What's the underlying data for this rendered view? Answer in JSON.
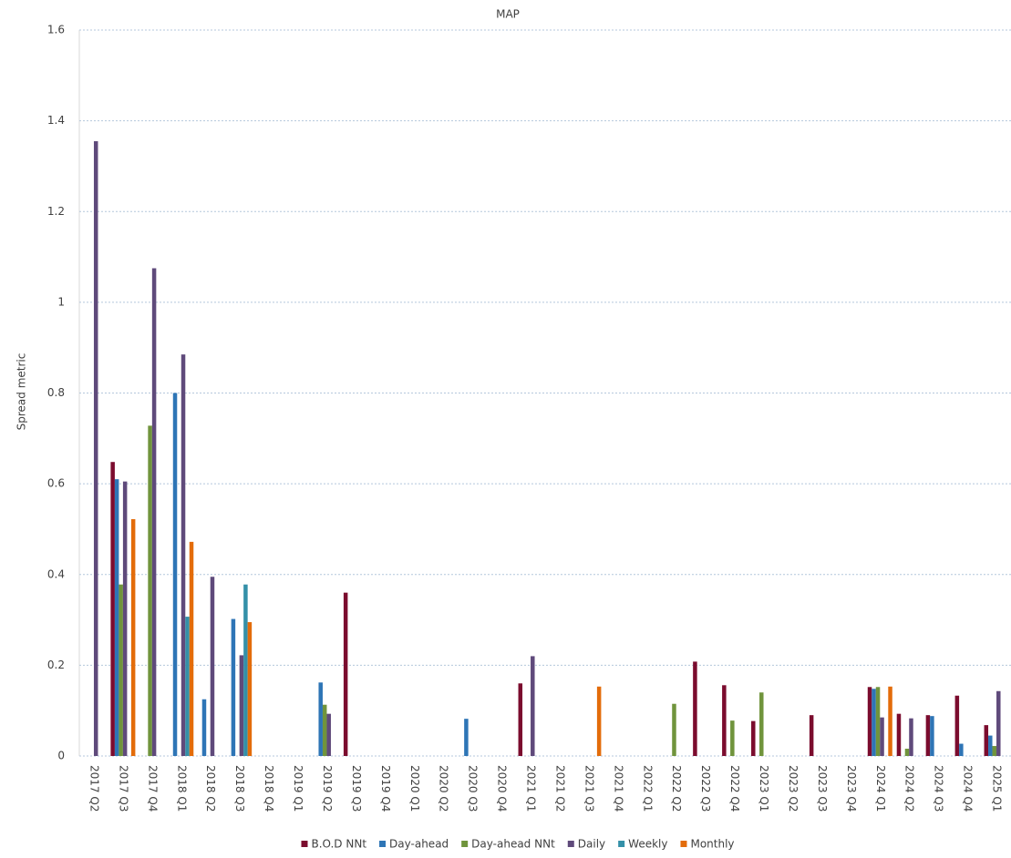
{
  "chart_data": {
    "type": "bar",
    "title": "MAP",
    "y_label": "Spread metric",
    "categories": [
      "2017 Q2",
      "2017 Q3",
      "2017 Q4",
      "2018 Q1",
      "2018 Q2",
      "2018 Q3",
      "2018 Q4",
      "2019 Q1",
      "2019 Q2",
      "2019 Q3",
      "2019 Q4",
      "2020 Q1",
      "2020 Q2",
      "2020 Q3",
      "2020 Q4",
      "2021 Q1",
      "2021 Q2",
      "2021 Q3",
      "2021 Q4",
      "2022 Q1",
      "2022 Q2",
      "2022 Q3",
      "2022 Q4",
      "2023 Q1",
      "2023 Q2",
      "2023 Q3",
      "2023 Q4",
      "2024 Q1",
      "2024 Q2",
      "2024 Q3",
      "2024 Q4",
      "2025 Q1"
    ],
    "series": [
      {
        "name": "B.O.D NNt",
        "color": "#7b0c2e",
        "values": [
          null,
          0.648,
          null,
          null,
          null,
          null,
          null,
          null,
          null,
          0.36,
          null,
          null,
          null,
          null,
          null,
          0.16,
          null,
          null,
          null,
          null,
          null,
          0.208,
          0.156,
          0.077,
          null,
          0.09,
          null,
          0.152,
          0.093,
          0.09,
          0.133,
          0.068
        ]
      },
      {
        "name": "Day-ahead",
        "color": "#2e75b6",
        "values": [
          null,
          0.61,
          null,
          0.8,
          0.125,
          0.302,
          null,
          null,
          0.162,
          null,
          null,
          null,
          null,
          0.082,
          null,
          null,
          null,
          null,
          null,
          null,
          null,
          null,
          null,
          null,
          null,
          null,
          null,
          0.148,
          null,
          0.088,
          0.027,
          0.045
        ]
      },
      {
        "name": "Day-ahead NNt",
        "color": "#70943c",
        "values": [
          null,
          0.378,
          0.728,
          null,
          null,
          null,
          null,
          null,
          0.113,
          null,
          null,
          null,
          null,
          null,
          null,
          null,
          null,
          null,
          null,
          null,
          0.115,
          null,
          0.078,
          0.14,
          null,
          null,
          null,
          0.152,
          0.016,
          null,
          null,
          0.022
        ]
      },
      {
        "name": "Daily",
        "color": "#5f4a7b",
        "values": [
          1.355,
          0.605,
          1.075,
          0.885,
          0.395,
          0.222,
          null,
          null,
          0.093,
          null,
          null,
          null,
          null,
          null,
          null,
          0.22,
          null,
          null,
          null,
          null,
          null,
          null,
          null,
          null,
          null,
          null,
          null,
          0.085,
          0.083,
          null,
          null,
          0.143
        ]
      },
      {
        "name": "Weekly",
        "color": "#3490a8",
        "values": [
          null,
          null,
          null,
          0.307,
          null,
          0.378,
          null,
          null,
          null,
          null,
          null,
          null,
          null,
          null,
          null,
          null,
          null,
          null,
          null,
          null,
          null,
          null,
          null,
          null,
          null,
          null,
          null,
          null,
          null,
          null,
          null,
          null
        ]
      },
      {
        "name": "Monthly",
        "color": "#e36c0a",
        "values": [
          null,
          0.522,
          null,
          0.472,
          null,
          0.295,
          null,
          null,
          null,
          null,
          null,
          null,
          null,
          null,
          null,
          null,
          null,
          0.153,
          null,
          null,
          null,
          null,
          null,
          null,
          null,
          null,
          null,
          0.153,
          null,
          null,
          null,
          null
        ]
      }
    ],
    "ylim": [
      0,
      1.6
    ],
    "yticks": [
      0,
      0.2,
      0.4,
      0.6,
      0.8,
      1,
      1.2,
      1.4,
      1.6
    ],
    "grid": true,
    "legend": "bottom"
  }
}
